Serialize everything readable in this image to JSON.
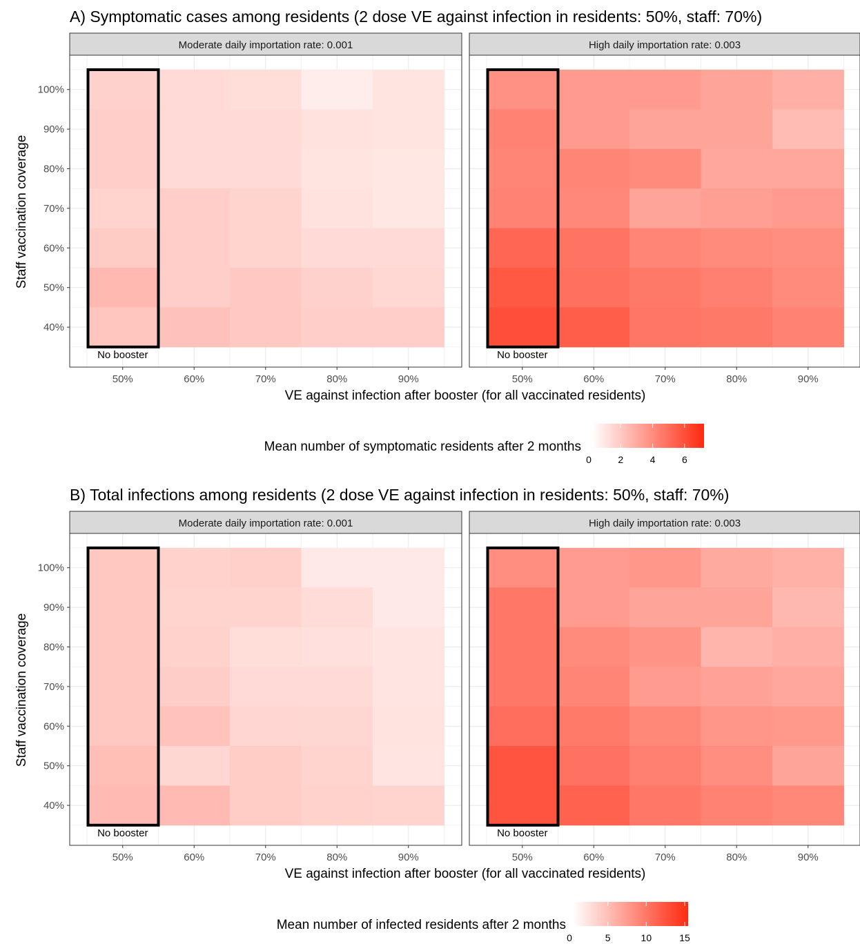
{
  "figure": {
    "panels": [
      {
        "id": "A",
        "title": "A) Symptomatic cases among residents (2 dose VE against infection in residents: 50%, staff: 70%)",
        "xlabel": "VE against infection after booster (for all vaccinated residents)",
        "ylabel": "Staff vaccination coverage",
        "legend_title": "Mean number of symptomatic residents after 2 months",
        "legend_ticks": [
          "0",
          "2",
          "4",
          "6"
        ]
      },
      {
        "id": "B",
        "title": "B) Total infections among residents (2 dose VE against infection in residents: 50%, staff: 70%)",
        "xlabel": "VE against infection after booster (for all vaccinated residents)",
        "ylabel": "Staff vaccination coverage",
        "legend_title": "Mean number of infected residents after 2 months",
        "legend_ticks": [
          "0",
          "5",
          "10",
          "15"
        ]
      }
    ]
  },
  "chart_data": [
    {
      "type": "heatmap",
      "title": "A) Symptomatic cases among residents (2 dose VE against infection in residents: 50%, staff: 70%)",
      "xlabel": "VE against infection after booster (for all vaccinated residents)",
      "ylabel": "Staff vaccination coverage",
      "x_categories": [
        "50%",
        "60%",
        "70%",
        "80%",
        "90%"
      ],
      "y_categories": [
        "40%",
        "50%",
        "60%",
        "70%",
        "80%",
        "90%",
        "100%"
      ],
      "legend_title": "Mean number of symptomatic residents after 2 months",
      "color_scale": {
        "min": 0,
        "max": 7,
        "low_color": "#ffffff",
        "high_color": "#ff2a10",
        "ticks": [
          0,
          2,
          4,
          6
        ]
      },
      "annotation": {
        "x": "50%",
        "label": "No booster"
      },
      "facets": [
        {
          "label": "Moderate daily importation rate: 0.001",
          "rows_y": [
            "100%",
            "90%",
            "80%",
            "70%",
            "60%",
            "50%",
            "40%"
          ],
          "values": [
            [
              1.5,
              1.2,
              1.1,
              0.6,
              0.9
            ],
            [
              1.6,
              1.2,
              1.2,
              1.0,
              0.9
            ],
            [
              1.6,
              1.2,
              1.2,
              0.9,
              0.8
            ],
            [
              1.4,
              1.6,
              1.4,
              1.0,
              0.8
            ],
            [
              1.7,
              1.6,
              1.4,
              1.2,
              1.2
            ],
            [
              2.3,
              1.6,
              1.8,
              1.5,
              1.3
            ],
            [
              1.9,
              2.0,
              1.8,
              1.6,
              1.6
            ]
          ]
        },
        {
          "label": "High daily importation rate: 0.003",
          "rows_y": [
            "100%",
            "90%",
            "80%",
            "70%",
            "60%",
            "50%",
            "40%"
          ],
          "values": [
            [
              3.6,
              3.3,
              3.3,
              3.0,
              2.6
            ],
            [
              4.1,
              3.3,
              3.0,
              3.0,
              2.2
            ],
            [
              4.0,
              4.0,
              3.8,
              2.9,
              2.9
            ],
            [
              4.1,
              3.9,
              3.0,
              3.2,
              3.3
            ],
            [
              5.0,
              4.6,
              4.0,
              3.8,
              3.7
            ],
            [
              5.5,
              4.7,
              4.4,
              4.2,
              3.8
            ],
            [
              5.8,
              5.3,
              4.5,
              4.4,
              4.1
            ]
          ]
        }
      ]
    },
    {
      "type": "heatmap",
      "title": "B) Total infections among residents (2 dose VE against infection in residents: 50%, staff: 70%)",
      "xlabel": "VE against infection after booster (for all vaccinated residents)",
      "ylabel": "Staff vaccination coverage",
      "x_categories": [
        "50%",
        "60%",
        "70%",
        "80%",
        "90%"
      ],
      "y_categories": [
        "40%",
        "50%",
        "60%",
        "70%",
        "80%",
        "90%",
        "100%"
      ],
      "legend_title": "Mean number of infected residents after 2 months",
      "color_scale": {
        "min": 0,
        "max": 15,
        "low_color": "#ffffff",
        "high_color": "#ff2a10",
        "ticks": [
          0,
          5,
          10,
          15
        ]
      },
      "annotation": {
        "x": "50%",
        "label": "No booster"
      },
      "facets": [
        {
          "label": "Moderate daily importation rate: 0.001",
          "rows_y": [
            "100%",
            "90%",
            "80%",
            "70%",
            "60%",
            "50%",
            "40%"
          ],
          "values": [
            [
              3.8,
              3.2,
              3.3,
              1.6,
              1.6
            ],
            [
              3.8,
              3.1,
              3.0,
              2.5,
              1.6
            ],
            [
              3.8,
              3.2,
              2.4,
              2.2,
              1.8
            ],
            [
              3.8,
              3.5,
              2.6,
              2.6,
              1.8
            ],
            [
              3.8,
              4.2,
              2.9,
              2.8,
              2.0
            ],
            [
              4.6,
              2.8,
              3.6,
              3.0,
              1.8
            ],
            [
              4.8,
              4.8,
              3.6,
              3.2,
              3.0
            ]
          ]
        },
        {
          "label": "High daily importation rate: 0.003",
          "rows_y": [
            "100%",
            "90%",
            "80%",
            "70%",
            "60%",
            "50%",
            "40%"
          ],
          "values": [
            [
              8.0,
              7.0,
              7.3,
              6.0,
              5.5
            ],
            [
              9.6,
              7.0,
              6.4,
              6.4,
              5.0
            ],
            [
              9.6,
              8.2,
              7.6,
              5.2,
              5.6
            ],
            [
              9.6,
              8.6,
              7.0,
              6.6,
              6.2
            ],
            [
              10.2,
              9.4,
              8.4,
              7.4,
              7.2
            ],
            [
              12.0,
              10.0,
              9.0,
              8.0,
              6.4
            ],
            [
              12.0,
              11.0,
              9.6,
              8.8,
              8.4
            ]
          ]
        }
      ]
    }
  ]
}
